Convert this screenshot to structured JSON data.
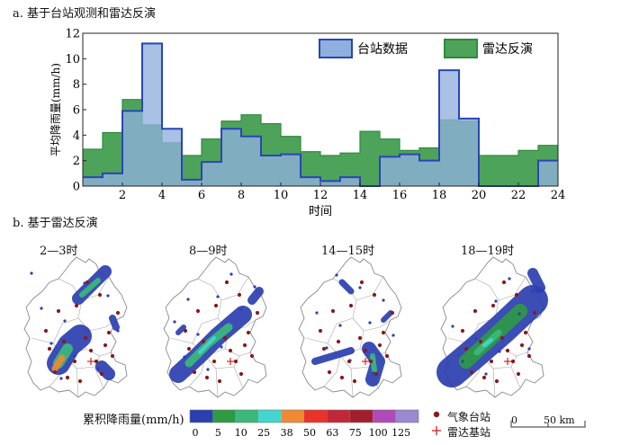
{
  "panel_a": {
    "title": "a. 基于台站观测和雷达反演"
  },
  "panel_b": {
    "title": "b. 基于雷达反演"
  },
  "chart_data": {
    "type": "bar",
    "title": "",
    "xlabel": "时间",
    "ylabel": "平均降雨量(mm/h)",
    "xlim": [
      0,
      24
    ],
    "ylim": [
      0,
      12
    ],
    "xticks": [
      2,
      4,
      6,
      8,
      10,
      12,
      14,
      16,
      18,
      20,
      22,
      24
    ],
    "yticks": [
      0,
      2,
      4,
      6,
      8,
      10,
      12
    ],
    "legend_position": "top-right",
    "categories": [
      1,
      2,
      3,
      4,
      5,
      6,
      7,
      8,
      9,
      10,
      11,
      12,
      13,
      14,
      15,
      16,
      17,
      18,
      19,
      20,
      21,
      22,
      23,
      24
    ],
    "series": [
      {
        "name": "台站数据",
        "color": "#8fb0dd",
        "edge": "#2a44b8",
        "values": [
          0.7,
          1.0,
          5.9,
          11.2,
          4.5,
          0.5,
          1.9,
          4.5,
          3.9,
          2.4,
          2.5,
          0.7,
          0.4,
          0.7,
          0.0,
          2.3,
          2.5,
          2.0,
          9.1,
          5.3,
          0.0,
          0.0,
          0.0,
          2.0
        ]
      },
      {
        "name": "雷达反演",
        "color": "#4ea35a",
        "edge": "#2f8a3b",
        "values": [
          2.9,
          4.2,
          6.8,
          4.8,
          3.4,
          2.4,
          3.7,
          5.1,
          5.6,
          4.9,
          3.9,
          2.7,
          2.4,
          2.6,
          4.3,
          3.7,
          2.8,
          3.0,
          5.2,
          5.1,
          2.4,
          2.4,
          2.8,
          3.2
        ]
      }
    ]
  },
  "maps": [
    {
      "title": "2—3时"
    },
    {
      "title": "8—9时"
    },
    {
      "title": "14—15时"
    },
    {
      "title": "18—19时"
    }
  ],
  "colorbar": {
    "label": "累积降雨量(mm/h)",
    "ticks": [
      "0",
      "5",
      "10",
      "25",
      "38",
      "50",
      "63",
      "75",
      "100",
      "125"
    ],
    "colors": [
      "#2b3fb0",
      "#2e9a44",
      "#3bb97a",
      "#43d6d0",
      "#ee8a34",
      "#e8332b",
      "#c0283a",
      "#a01f2c",
      "#b04ab8",
      "#9b88d2"
    ]
  },
  "legend_markers": {
    "station": "气象台站",
    "radar": "雷达基站",
    "station_color": "#8b1a1a",
    "radar_color": "#d32020"
  },
  "scalebar": {
    "start": "0",
    "end": "50 km"
  }
}
